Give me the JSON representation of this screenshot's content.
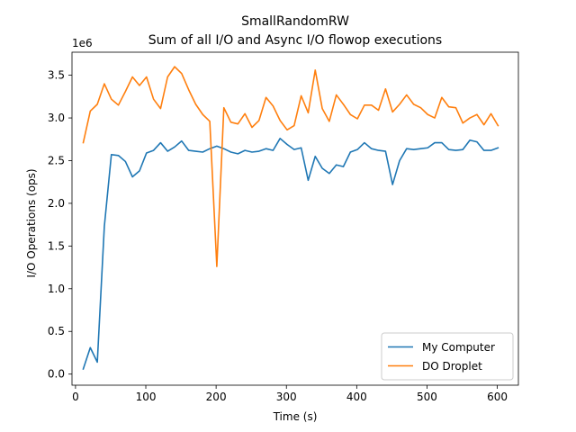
{
  "chart_data": {
    "type": "line",
    "title": "SmallRandomRW",
    "subtitle": "Sum of all I/O and Async I/O flowop executions",
    "xlabel": "Time (s)",
    "ylabel": "I/O Operations (ops)",
    "y_scale_label": "1e6",
    "xlim": [
      -5,
      630
    ],
    "ylim": [
      -0.13,
      3.77
    ],
    "x_ticks": [
      0,
      100,
      200,
      300,
      400,
      500,
      600
    ],
    "x_tick_labels": [
      "0",
      "100",
      "200",
      "300",
      "400",
      "500",
      "600"
    ],
    "y_ticks": [
      0.0,
      0.5,
      1.0,
      1.5,
      2.0,
      2.5,
      3.0,
      3.5
    ],
    "y_tick_labels": [
      "0.0",
      "0.5",
      "1.0",
      "1.5",
      "2.0",
      "2.5",
      "3.0",
      "3.5"
    ],
    "grid": false,
    "legend_position": "lower-right",
    "x": [
      11,
      21,
      31,
      41,
      51,
      61,
      71,
      81,
      91,
      101,
      111,
      121,
      131,
      141,
      151,
      161,
      171,
      181,
      191,
      201,
      211,
      221,
      231,
      241,
      251,
      261,
      271,
      281,
      291,
      301,
      311,
      321,
      331,
      341,
      351,
      361,
      371,
      381,
      391,
      401,
      411,
      421,
      431,
      441,
      451,
      461,
      471,
      481,
      491,
      501,
      511,
      521,
      531,
      541,
      551,
      561,
      571,
      581,
      591,
      601
    ],
    "series": [
      {
        "name": "My Computer",
        "color": "#1f77b4",
        "values": [
          0.06,
          0.31,
          0.14,
          1.73,
          2.57,
          2.56,
          2.49,
          2.31,
          2.38,
          2.59,
          2.62,
          2.71,
          2.61,
          2.66,
          2.73,
          2.62,
          2.61,
          2.6,
          2.64,
          2.67,
          2.64,
          2.6,
          2.58,
          2.62,
          2.6,
          2.61,
          2.64,
          2.62,
          2.76,
          2.69,
          2.63,
          2.65,
          2.27,
          2.55,
          2.41,
          2.35,
          2.45,
          2.43,
          2.6,
          2.63,
          2.71,
          2.64,
          2.62,
          2.61,
          2.22,
          2.5,
          2.64,
          2.63,
          2.64,
          2.65,
          2.71,
          2.71,
          2.63,
          2.62,
          2.63,
          2.74,
          2.72,
          2.62,
          2.62,
          2.65
        ]
      },
      {
        "name": "DO Droplet",
        "color": "#ff7f0e",
        "values": [
          2.71,
          3.08,
          3.16,
          3.4,
          3.22,
          3.15,
          3.31,
          3.48,
          3.38,
          3.48,
          3.22,
          3.11,
          3.48,
          3.6,
          3.52,
          3.33,
          3.16,
          3.04,
          2.96,
          1.26,
          3.12,
          2.95,
          2.93,
          3.05,
          2.89,
          2.97,
          3.24,
          3.14,
          2.97,
          2.86,
          2.91,
          3.26,
          3.06,
          3.56,
          3.11,
          2.96,
          3.27,
          3.16,
          3.04,
          2.99,
          3.15,
          3.15,
          3.09,
          3.34,
          3.07,
          3.16,
          3.27,
          3.16,
          3.12,
          3.04,
          3.0,
          3.24,
          3.13,
          3.12,
          2.94,
          3.0,
          3.04,
          2.92,
          3.05,
          2.91
        ]
      }
    ]
  }
}
